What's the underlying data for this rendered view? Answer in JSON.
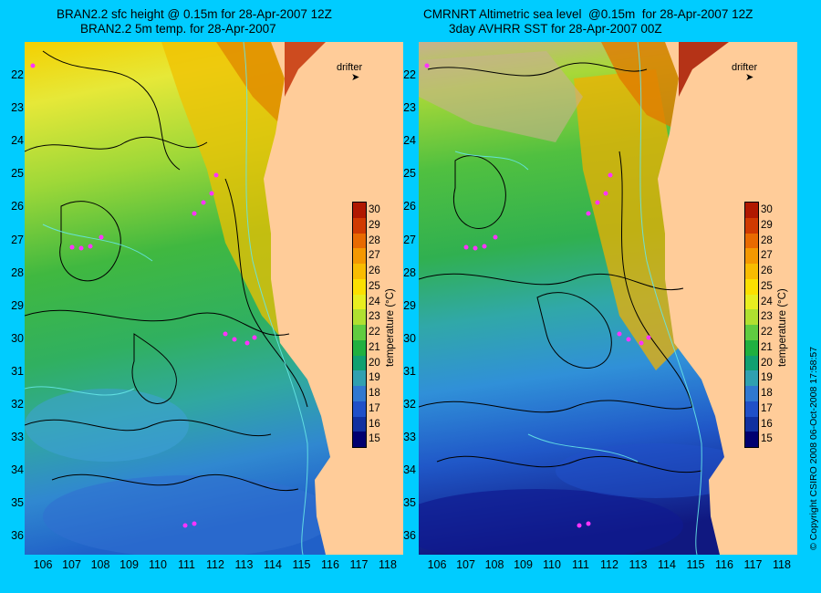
{
  "left_panel": {
    "title_line1": "BRAN2.2 sfc height @ 0.15m for 28-Apr-2007 12Z",
    "title_line2": "BRAN2.2 5m temp. for 28-Apr-2007"
  },
  "right_panel": {
    "title_line1": "CMRNRT Altimetric sea level  @0.15m  for 28-Apr-2007 12Z",
    "title_line2": "3day AVHRR SST for 28-Apr-2007 00Z"
  },
  "legend": {
    "drifter_label": "drifter",
    "drifter_color": "#ff33ff"
  },
  "colorbar": {
    "title": "temperature (°C)",
    "ticks": [
      "30",
      "29",
      "28",
      "27",
      "26",
      "25",
      "24",
      "23",
      "22",
      "21",
      "20",
      "19",
      "18",
      "17",
      "16",
      "15"
    ],
    "colors": [
      "#b01800",
      "#d03a00",
      "#e86a00",
      "#f49800",
      "#f8bc00",
      "#fbe000",
      "#e8ee20",
      "#b0e030",
      "#60cc40",
      "#20b040",
      "#10a070",
      "#30a0b0",
      "#3078d0",
      "#2050c8",
      "#1030a0",
      "#000070"
    ]
  },
  "axes": {
    "latitudes": [
      "22",
      "23",
      "24",
      "25",
      "26",
      "27",
      "28",
      "29",
      "30",
      "31",
      "32",
      "33",
      "34",
      "35",
      "36"
    ],
    "longitudes": [
      "106",
      "107",
      "108",
      "109",
      "110",
      "111",
      "112",
      "113",
      "114",
      "115",
      "116",
      "117",
      "118"
    ]
  },
  "land_color": "#ffcc99",
  "copyright": "© Copyright CSIRO 2008    06-Oct-2008 17:58:57"
}
